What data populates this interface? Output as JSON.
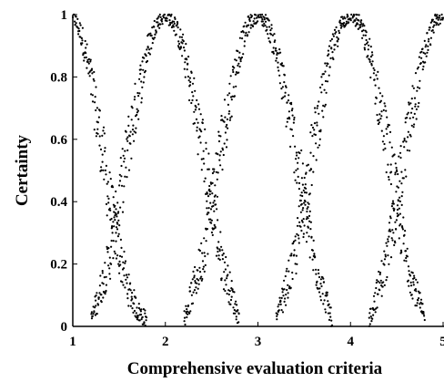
{
  "chart_data": {
    "type": "scatter",
    "title": "",
    "xlabel": "Comprehensive evaluation criteria",
    "ylabel": "Certainty",
    "xlim": [
      1,
      5
    ],
    "ylim": [
      0,
      1
    ],
    "x_ticks": [
      "1",
      "2",
      "3",
      "4",
      "5"
    ],
    "y_ticks": [
      "0",
      "0.2",
      "0.4",
      "0.6",
      "0.8",
      "1"
    ],
    "grid": false,
    "legend": "none",
    "series": [
      {
        "peak": 1,
        "x": [
          1.0,
          1.1,
          1.2,
          1.3,
          1.4,
          1.5,
          1.6,
          1.7,
          1.8
        ],
        "y": [
          1.0,
          0.93,
          0.78,
          0.6,
          0.4,
          0.24,
          0.12,
          0.05,
          0.02
        ]
      },
      {
        "peak": 2,
        "x": [
          1.2,
          1.4,
          1.6,
          1.8,
          1.9,
          2.0,
          2.1,
          2.2,
          2.4,
          2.6,
          2.8
        ],
        "y": [
          0.02,
          0.22,
          0.58,
          0.88,
          0.97,
          1.0,
          0.97,
          0.88,
          0.58,
          0.22,
          0.02
        ]
      },
      {
        "peak": 3,
        "x": [
          2.2,
          2.4,
          2.6,
          2.8,
          2.9,
          3.0,
          3.1,
          3.2,
          3.4,
          3.6,
          3.8
        ],
        "y": [
          0.02,
          0.22,
          0.58,
          0.88,
          0.97,
          1.0,
          0.97,
          0.88,
          0.58,
          0.22,
          0.02
        ]
      },
      {
        "peak": 4,
        "x": [
          3.2,
          3.4,
          3.6,
          3.8,
          3.9,
          4.0,
          4.1,
          4.2,
          4.4,
          4.6,
          4.8
        ],
        "y": [
          0.02,
          0.22,
          0.58,
          0.88,
          0.97,
          1.0,
          0.97,
          0.88,
          0.58,
          0.22,
          0.02
        ]
      },
      {
        "peak": 5,
        "x": [
          4.2,
          4.4,
          4.6,
          4.8,
          4.9,
          5.0
        ],
        "y": [
          0.02,
          0.22,
          0.58,
          0.88,
          0.97,
          1.0
        ]
      }
    ],
    "point_color": "#000000"
  }
}
